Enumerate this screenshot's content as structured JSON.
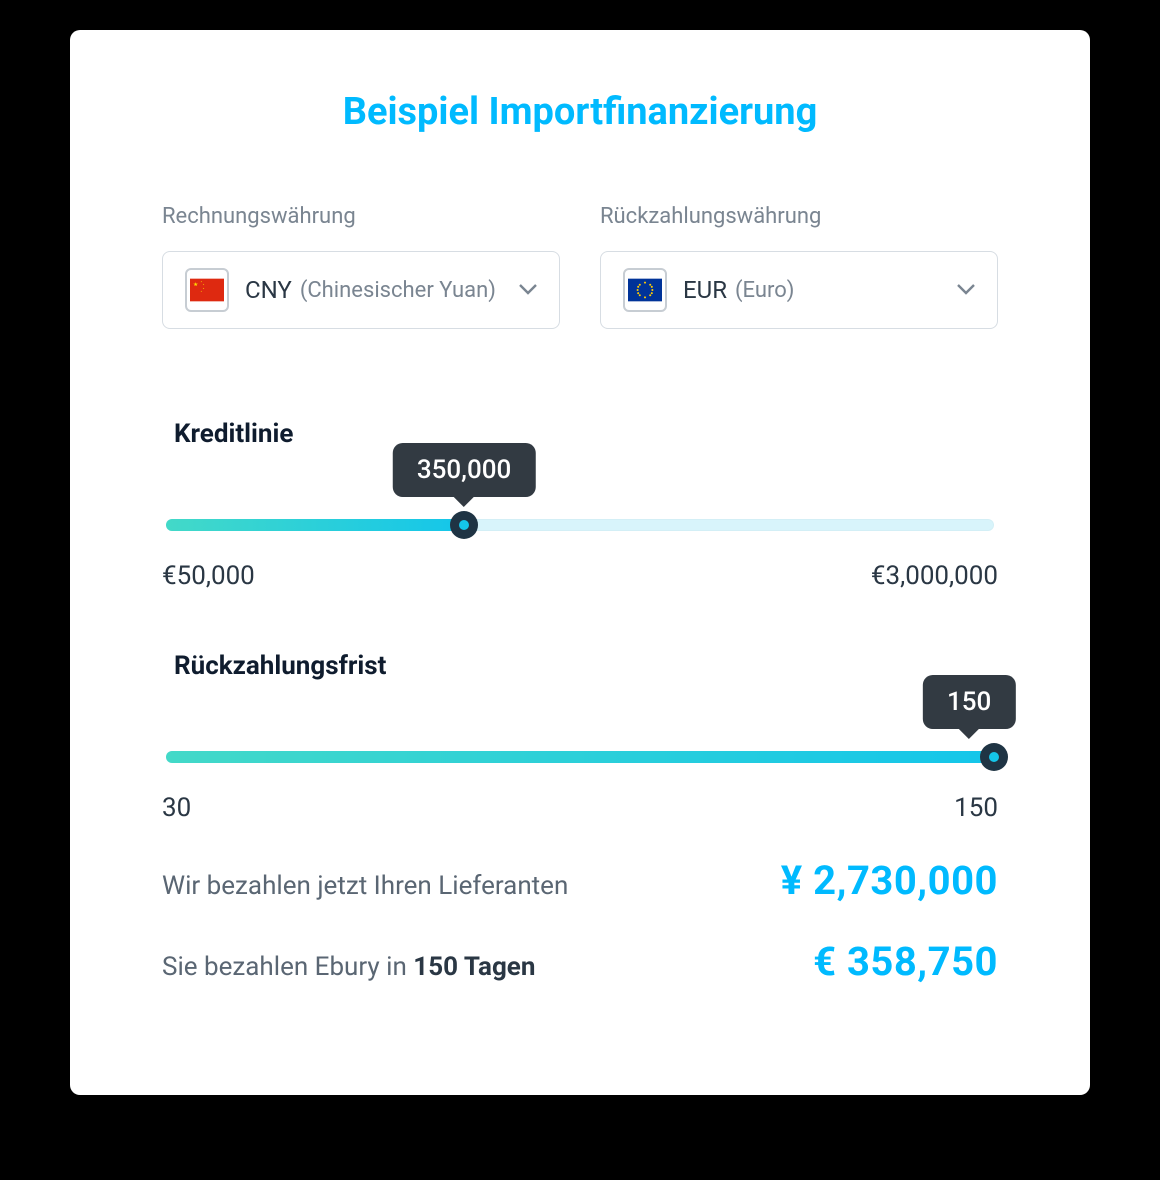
{
  "colors": {
    "page_bg": "#000000",
    "card_bg": "#ffffff",
    "accent": "#00baff",
    "text_muted": "#7a8591",
    "text_body": "#5a6673",
    "text_dark": "#2a3744",
    "heading_dark": "#0f1c2e",
    "border": "#d7dde3",
    "slider_track_bg": "#d8f4fb",
    "slider_fill_start": "#43d9c8",
    "slider_fill_end": "#14c6ea",
    "handle_bg": "#1f3444",
    "tooltip_bg": "#323a42",
    "tooltip_text": "#ffffff"
  },
  "title": "Beispiel Importfinanzierung",
  "selectors": {
    "invoice": {
      "label": "Rechnungswährung",
      "code": "CNY",
      "name": "(Chinesischer Yuan)",
      "flag": "cn"
    },
    "repay": {
      "label": "Rückzahlungswährung",
      "code": "EUR",
      "name": "(Euro)",
      "flag": "eu"
    }
  },
  "sliders": {
    "credit": {
      "title": "Kreditlinie",
      "tooltip": "350,000",
      "min_label": "€50,000",
      "max_label": "€3,000,000",
      "min": 50000,
      "max": 3000000,
      "value": 350000,
      "fill_percent": 36,
      "handle_percent": 36,
      "tooltip_percent": 36,
      "tooltip_align": "center"
    },
    "term": {
      "title": "Rückzahlungsfrist",
      "tooltip": "150",
      "min_label": "30",
      "max_label": "150",
      "min": 30,
      "max": 150,
      "value": 150,
      "fill_percent": 100,
      "handle_percent": 100,
      "tooltip_percent": 97,
      "tooltip_align": "right"
    }
  },
  "results": {
    "supplier": {
      "text": "Wir bezahlen jetzt Ihren Lieferanten",
      "value": "¥ 2,730,000"
    },
    "repay": {
      "text_prefix": "Sie bezahlen Ebury in ",
      "text_bold": "150 Tagen",
      "value": "€ 358,750"
    }
  }
}
